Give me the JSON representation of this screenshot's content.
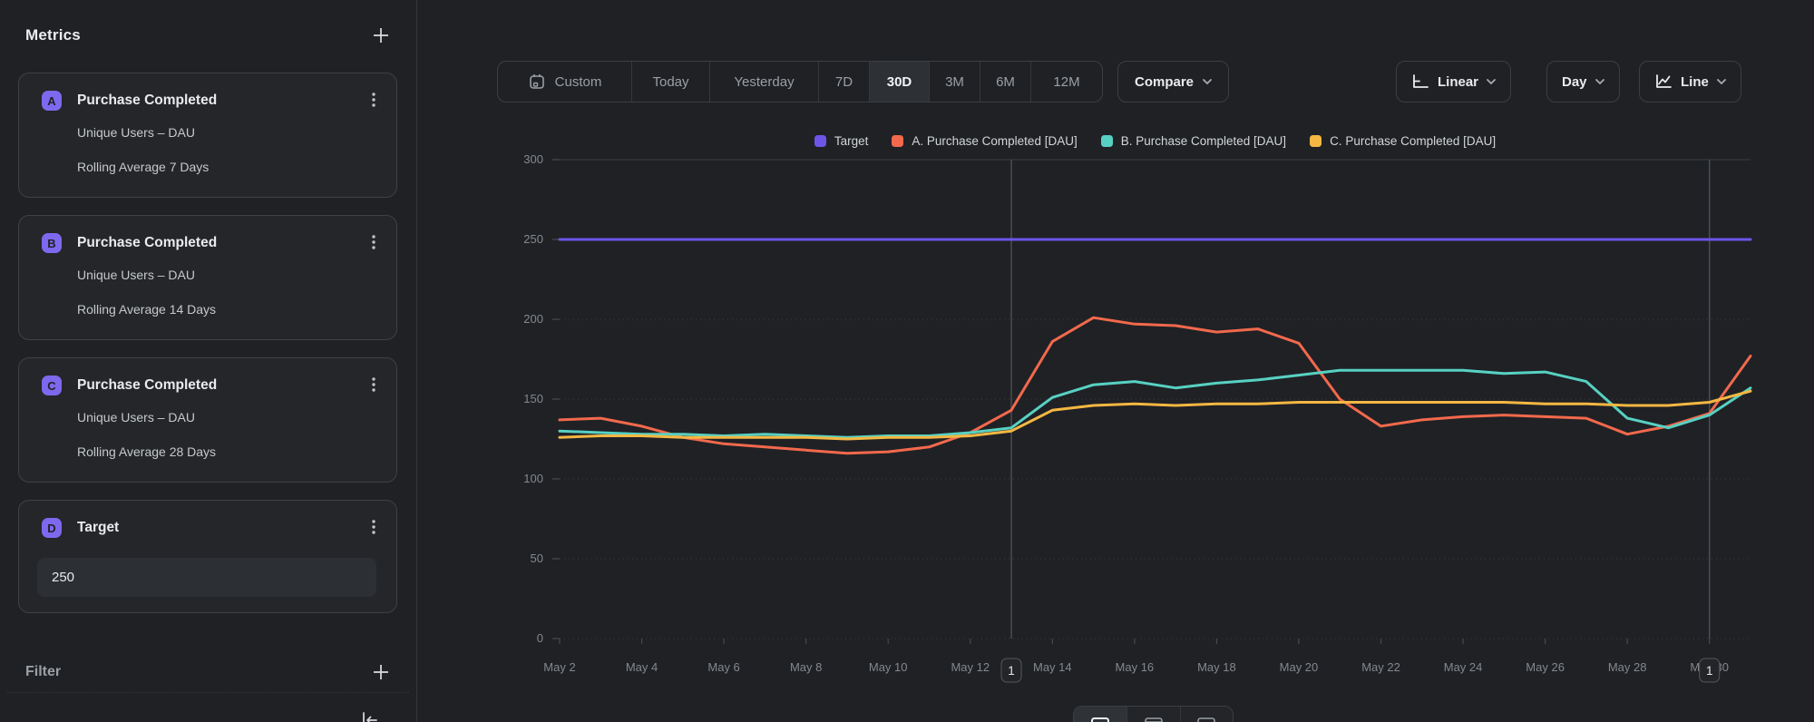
{
  "sidebar": {
    "title": "Metrics",
    "cards": [
      {
        "letter": "A",
        "title": "Purchase Completed",
        "line1": "Unique Users – DAU",
        "line2": "Rolling Average 7 Days"
      },
      {
        "letter": "B",
        "title": "Purchase Completed",
        "line1": "Unique Users – DAU",
        "line2": "Rolling Average 14 Days"
      },
      {
        "letter": "C",
        "title": "Purchase Completed",
        "line1": "Unique Users – DAU",
        "line2": "Rolling Average 28 Days"
      }
    ],
    "target_card": {
      "letter": "D",
      "title": "Target",
      "value": "250"
    },
    "filter_label": "Filter"
  },
  "toolbar": {
    "ranges": [
      {
        "label": "Custom",
        "active": false
      },
      {
        "label": "Today",
        "active": false
      },
      {
        "label": "Yesterday",
        "active": false
      },
      {
        "label": "7D",
        "active": false
      },
      {
        "label": "30D",
        "active": true
      },
      {
        "label": "3M",
        "active": false
      },
      {
        "label": "6M",
        "active": false
      },
      {
        "label": "12M",
        "active": false
      }
    ],
    "compare_label": "Compare",
    "scale_label": "Linear",
    "interval_label": "Day",
    "chart_type_label": "Line"
  },
  "chart_data": {
    "type": "line",
    "x": [
      "May 2",
      "May 3",
      "May 4",
      "May 5",
      "May 6",
      "May 7",
      "May 8",
      "May 9",
      "May 10",
      "May 11",
      "May 12",
      "May 13",
      "May 14",
      "May 15",
      "May 16",
      "May 17",
      "May 18",
      "May 19",
      "May 20",
      "May 21",
      "May 22",
      "May 23",
      "May 24",
      "May 25",
      "May 26",
      "May 27",
      "May 28",
      "May 29",
      "May 30",
      "May 31"
    ],
    "x_tick_every": 2,
    "ylim": [
      0,
      300
    ],
    "y_ticks": [
      0,
      50,
      100,
      150,
      200,
      250,
      300
    ],
    "grid": "horizontal-dotted",
    "legend_position": "top-center",
    "series": [
      {
        "name": "Target",
        "color": "#6e55e6",
        "values": [
          250,
          250,
          250,
          250,
          250,
          250,
          250,
          250,
          250,
          250,
          250,
          250,
          250,
          250,
          250,
          250,
          250,
          250,
          250,
          250,
          250,
          250,
          250,
          250,
          250,
          250,
          250,
          250,
          250,
          250
        ]
      },
      {
        "name": "A. Purchase Completed [DAU]",
        "color": "#f2694c",
        "values": [
          137,
          138,
          133,
          126,
          122,
          120,
          118,
          116,
          117,
          120,
          129,
          143,
          186,
          201,
          197,
          196,
          192,
          194,
          185,
          150,
          133,
          137,
          139,
          140,
          139,
          138,
          128,
          133,
          141,
          177
        ]
      },
      {
        "name": "B. Purchase Completed [DAU]",
        "color": "#57d1c2",
        "values": [
          130,
          129,
          128,
          128,
          127,
          128,
          127,
          126,
          127,
          127,
          129,
          132,
          151,
          159,
          161,
          157,
          160,
          162,
          165,
          168,
          168,
          168,
          168,
          166,
          167,
          161,
          138,
          132,
          140,
          157
        ]
      },
      {
        "name": "C. Purchase Completed [DAU]",
        "color": "#f5b742",
        "values": [
          126,
          127,
          127,
          126,
          126,
          126,
          126,
          125,
          126,
          126,
          127,
          130,
          143,
          146,
          147,
          146,
          147,
          147,
          148,
          148,
          148,
          148,
          148,
          148,
          147,
          147,
          146,
          146,
          148,
          155
        ]
      }
    ],
    "annotations": [
      {
        "x_index": 11,
        "date": "May 13",
        "label": "1"
      },
      {
        "x_index": 28,
        "date": "May 30",
        "label": "1"
      }
    ]
  }
}
